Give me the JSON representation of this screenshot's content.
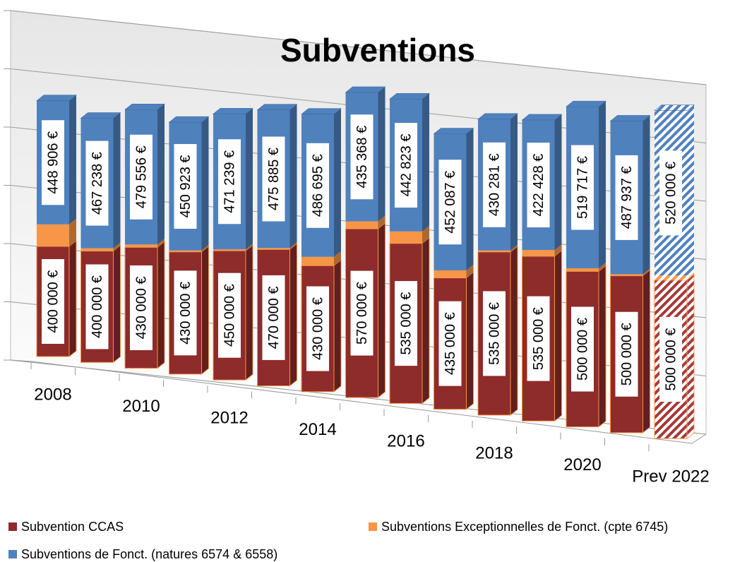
{
  "chart_data": {
    "type": "bar3d_stacked",
    "title": "Subventions",
    "categories": [
      "2008",
      null,
      "2010",
      null,
      "2012",
      null,
      "2014",
      null,
      "2016",
      null,
      "2018",
      null,
      "2020",
      null,
      "Prev 2022"
    ],
    "series": [
      {
        "name": "Subvention CCAS",
        "color": "#8e2b2b",
        "values": [
          400000,
          400000,
          430000,
          430000,
          450000,
          470000,
          430000,
          570000,
          535000,
          435000,
          535000,
          535000,
          500000,
          500000,
          500000
        ],
        "value_labels": [
          "400 000 €",
          "400 000 €",
          "430 000 €",
          "430 000 €",
          "450 000 €",
          "470 000 €",
          "430 000 €",
          "570 000 €",
          "535 000 €",
          "435 000 €",
          "535 000 €",
          "535 000 €",
          "500 000 €",
          "500 000 €",
          "500 000 €"
        ]
      },
      {
        "name": "Subventions Exceptionnelles de Fonct. (cpte 6745)",
        "color": "#f79646",
        "values": [
          80000,
          10000,
          10000,
          5000,
          5000,
          5000,
          30000,
          25000,
          40000,
          25000,
          5000,
          20000,
          10000,
          5000,
          15000
        ]
      },
      {
        "name": "Subventions de Fonct. (natures 6574 & 6558)",
        "color": "#4f81bd",
        "values": [
          448906,
          467238,
          479556,
          450923,
          471239,
          475885,
          486695,
          435368,
          442823,
          452087,
          430281,
          422428,
          519717,
          487937,
          520000
        ],
        "value_labels": [
          "448 906 €",
          "467 238 €",
          "479 556 €",
          "450 923 €",
          "471 239 €",
          "475 885 €",
          "486 695 €",
          "435 368 €",
          "442 823 €",
          "452 087 €",
          "430 281 €",
          "422 428 €",
          "519 717 €",
          "487 937 €",
          "520 000 €"
        ]
      }
    ],
    "ylim": [
      0,
      1200000
    ],
    "yticks": [
      0,
      200000,
      400000,
      600000,
      800000,
      1000000,
      1200000
    ],
    "grid": true,
    "legend": "bottom"
  }
}
